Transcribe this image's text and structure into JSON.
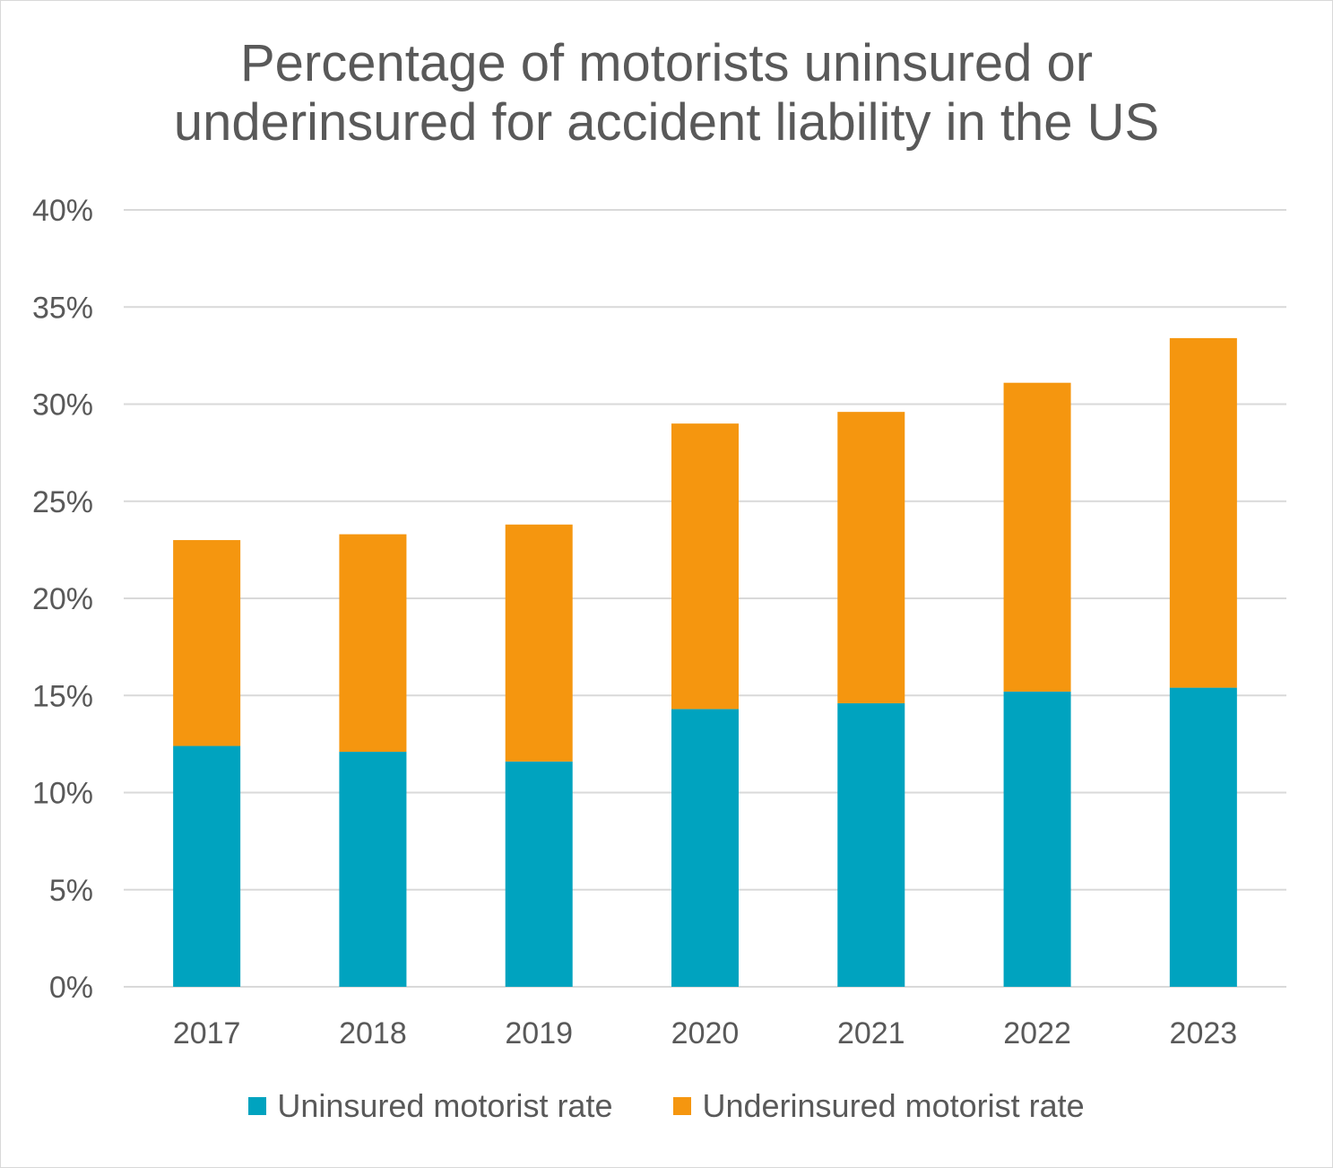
{
  "chart_data": {
    "type": "bar",
    "stacked": true,
    "title_lines": [
      "Percentage of motorists uninsured or",
      "underinsured for accident liability in the US"
    ],
    "categories": [
      "2017",
      "2018",
      "2019",
      "2020",
      "2021",
      "2022",
      "2023"
    ],
    "series": [
      {
        "name": "Uninsured motorist rate",
        "color": "#00a3bf",
        "values": [
          12.4,
          12.1,
          11.6,
          14.3,
          14.6,
          15.2,
          15.4
        ]
      },
      {
        "name": "Underinsured motorist rate",
        "color": "#f5960f",
        "values": [
          10.6,
          11.2,
          12.2,
          14.7,
          15.0,
          15.9,
          18.0
        ]
      }
    ],
    "ylim": [
      0,
      40
    ],
    "yticks": [
      "0%",
      "5%",
      "10%",
      "15%",
      "20%",
      "25%",
      "30%",
      "35%",
      "40%"
    ],
    "grid": true,
    "legend_position": "bottom"
  }
}
